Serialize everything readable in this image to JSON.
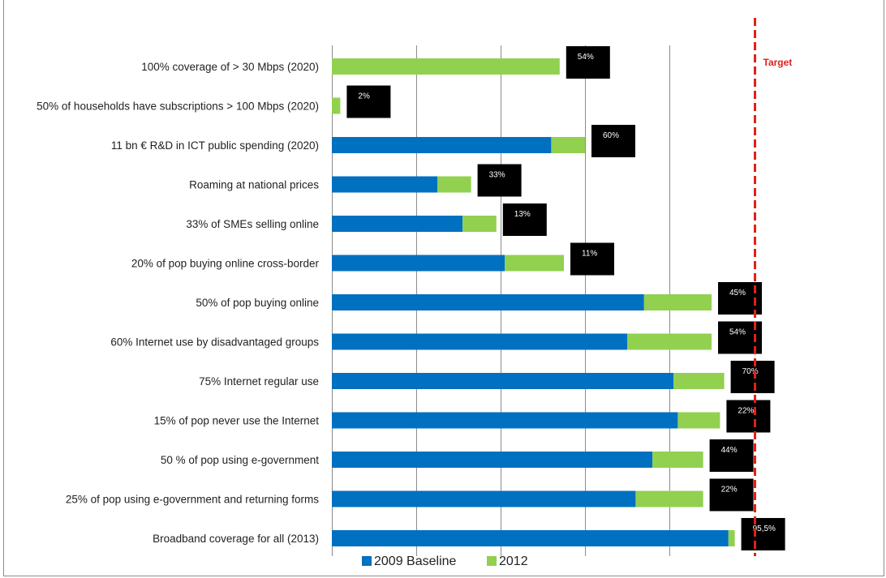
{
  "chart_data": {
    "type": "bar",
    "orientation": "horizontal",
    "stacked": true,
    "categories": [
      "100% coverage of > 30 Mbps (2020)",
      "50% of households have subscriptions > 100 Mbps (2020)",
      "11 bn € R&D in ICT public spending (2020)",
      "Roaming at national prices",
      "33% of SMEs selling online",
      "20% of pop buying online cross-border",
      "50% of pop buying online",
      "60% Internet use by disadvantaged groups",
      "75% Internet regular use",
      "15% of pop never use the Internet",
      "50 % of pop using e-government",
      "25% of pop using e-government and returning forms",
      "Broadband coverage for all (2013)"
    ],
    "series": [
      {
        "name": "2009 Baseline",
        "color": "#0070C0",
        "values": [
          0,
          0,
          52,
          25,
          31,
          41,
          74,
          70,
          81,
          82,
          76,
          72,
          94
        ]
      },
      {
        "name": "2012",
        "color": "#92D050",
        "values": [
          54,
          2,
          8,
          8,
          8,
          14,
          16,
          20,
          12,
          10,
          12,
          16,
          1.5
        ]
      }
    ],
    "value_labels": [
      "54%",
      "2%",
      "60%",
      "33%",
      "13%",
      "11%",
      "45%",
      "54%",
      "70%",
      "22%",
      "44%",
      "22%",
      "95,5%"
    ],
    "xlim": [
      0,
      100
    ],
    "grid": true,
    "target": {
      "label": "Target",
      "value": 100,
      "color": "#E0201B"
    },
    "legend_position": "bottom"
  }
}
